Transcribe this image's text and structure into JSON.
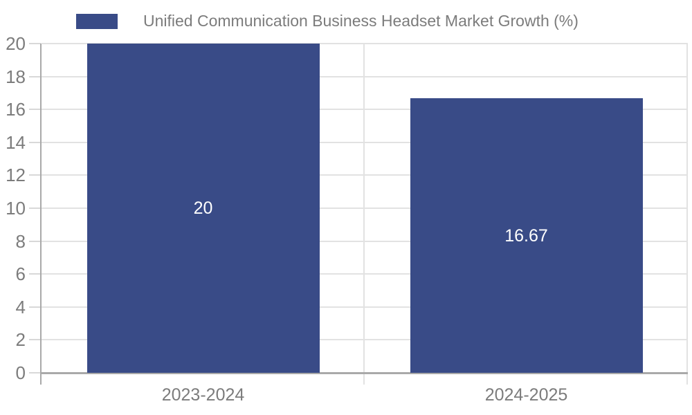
{
  "legend": {
    "label": "Unified Communication Business Headset Market Growth (%)"
  },
  "colors": {
    "bar": "#394B87",
    "grid": "#E2E2E2",
    "axis": "#A9A9A9",
    "tick": "#D8D8D8",
    "axis_text": "#7C7C7C",
    "bar_label_text": "#FFFFFF",
    "background": "#FFFFFF"
  },
  "chart_data": {
    "type": "bar",
    "title": "Unified Communication Business Headset Market Growth (%)",
    "categories": [
      "2023-2024",
      "2024-2025"
    ],
    "values": [
      20,
      16.67
    ],
    "value_labels": [
      "20",
      "16.67"
    ],
    "xlabel": "",
    "ylabel": "",
    "ylim": [
      0,
      20
    ],
    "ytick_step": 2,
    "yticks": [
      0,
      2,
      4,
      6,
      8,
      10,
      12,
      14,
      16,
      18,
      20
    ],
    "grid": true,
    "legend_position": "top-left",
    "bar_label_position": "inside-center"
  }
}
